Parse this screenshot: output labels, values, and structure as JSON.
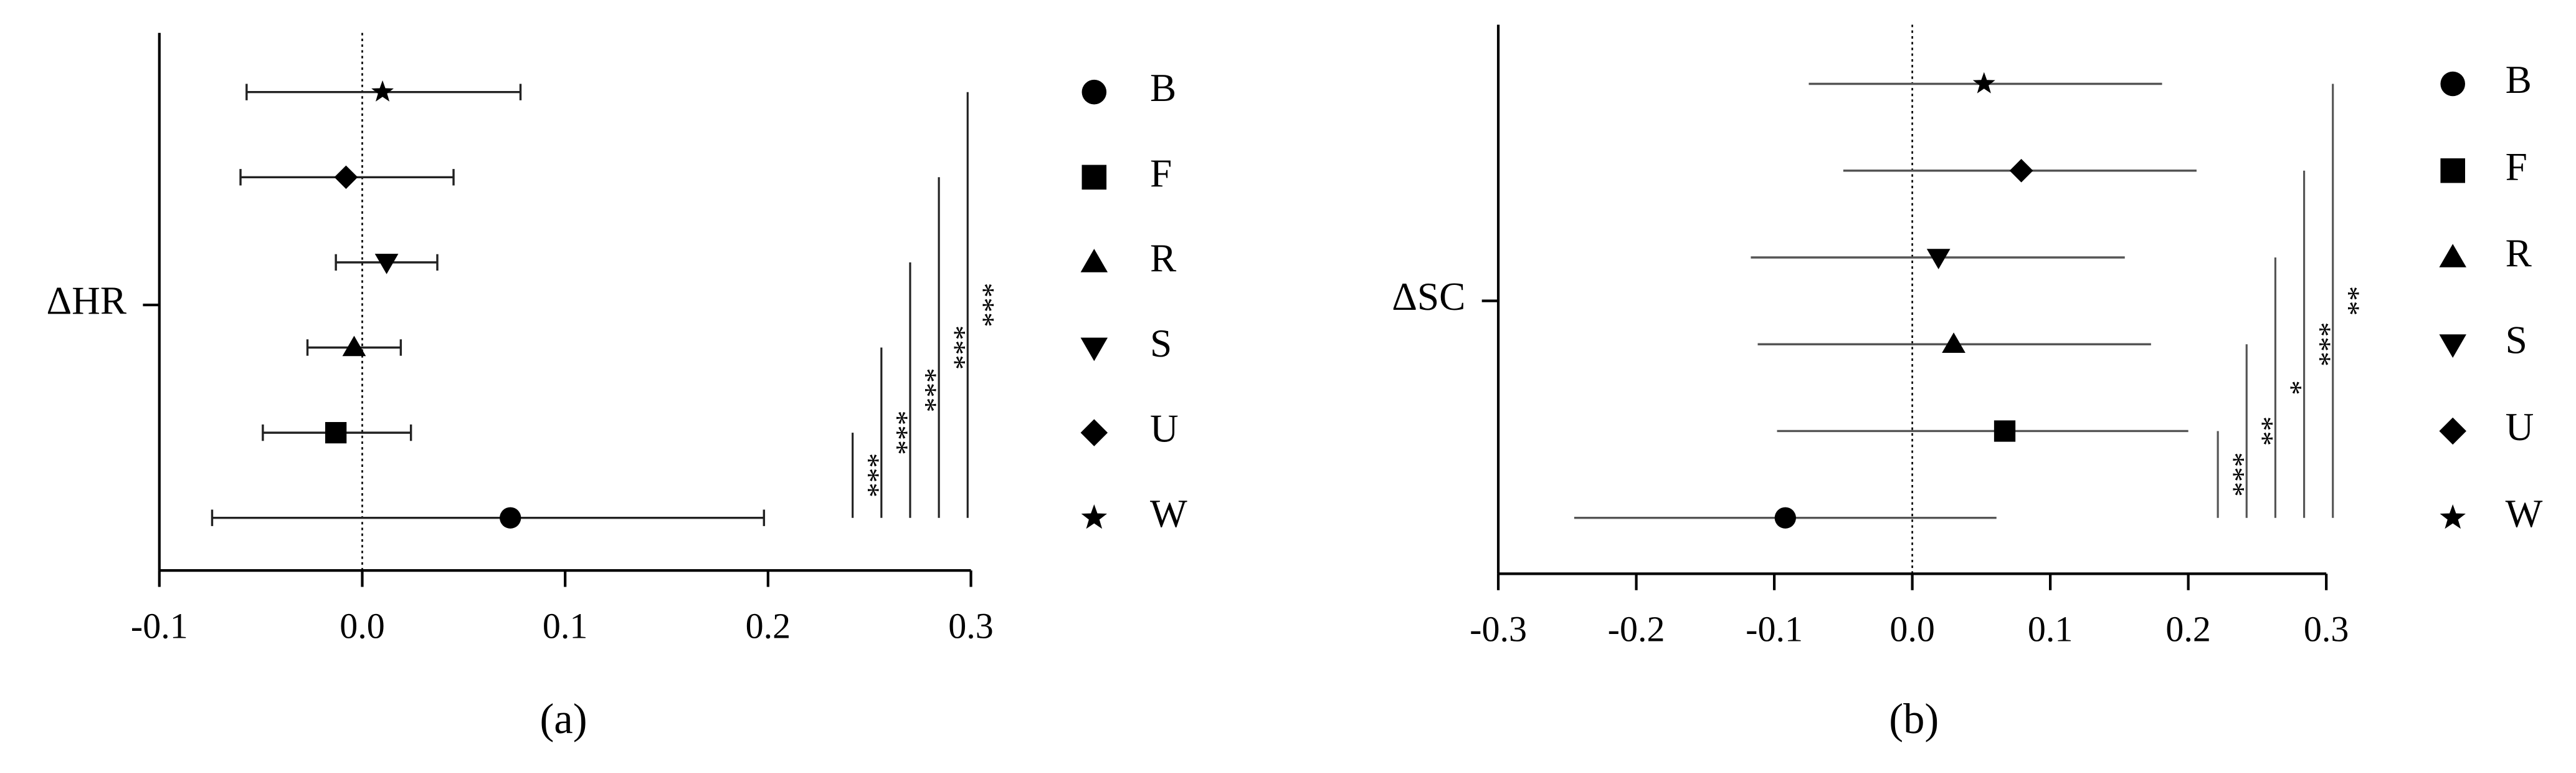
{
  "chart_data": [
    {
      "type": "errorbar",
      "ylabel": "ΔHR",
      "caption": "(a)",
      "categories": [
        "B",
        "F",
        "R",
        "S",
        "U",
        "W"
      ],
      "markers": [
        "circle",
        "square",
        "triangle-up",
        "triangle-down",
        "diamond",
        "star"
      ],
      "values": [
        0.073,
        -0.013,
        -0.004,
        0.012,
        -0.008,
        0.01
      ],
      "lower": [
        -0.074,
        -0.049,
        -0.027,
        -0.013,
        -0.06,
        -0.057
      ],
      "upper": [
        0.198,
        0.024,
        0.019,
        0.037,
        0.045,
        0.078
      ],
      "xlim": [
        -0.1,
        0.3
      ],
      "xticks": [
        -0.1,
        {
          "value": 0,
          "label": "0.0"
        },
        0.1,
        0.2,
        0.3
      ],
      "reference_line": 0,
      "color": "#222222",
      "caps": true,
      "significance": [
        {
          "pair": [
            "B",
            "F"
          ],
          "label": "***"
        },
        {
          "pair": [
            "B",
            "R"
          ],
          "label": "***"
        },
        {
          "pair": [
            "B",
            "S"
          ],
          "label": "***"
        },
        {
          "pair": [
            "B",
            "U"
          ],
          "label": "***"
        },
        {
          "pair": [
            "B",
            "W"
          ],
          "label": "***"
        }
      ]
    },
    {
      "type": "errorbar",
      "ylabel": "ΔSC",
      "caption": "(b)",
      "categories": [
        "B",
        "F",
        "R",
        "S",
        "U",
        "W"
      ],
      "markers": [
        "circle",
        "square",
        "triangle-up",
        "triangle-down",
        "diamond",
        "star"
      ],
      "values": [
        -0.092,
        0.067,
        0.03,
        0.019,
        0.079,
        0.052
      ],
      "lower": [
        -0.245,
        -0.098,
        -0.112,
        -0.117,
        -0.05,
        -0.075
      ],
      "upper": [
        0.061,
        0.2,
        0.173,
        0.154,
        0.206,
        0.181
      ],
      "xlim": [
        -0.3,
        0.3
      ],
      "xticks": [
        -0.3,
        -0.2,
        -0.1,
        {
          "value": 0,
          "label": "0.0"
        },
        0.1,
        0.2,
        0.3
      ],
      "reference_line": 0,
      "color": "#555555",
      "caps": false,
      "significance": [
        {
          "pair": [
            "B",
            "F"
          ],
          "label": "***"
        },
        {
          "pair": [
            "B",
            "R"
          ],
          "label": "**"
        },
        {
          "pair": [
            "B",
            "S"
          ],
          "label": "*"
        },
        {
          "pair": [
            "B",
            "U"
          ],
          "label": "***"
        },
        {
          "pair": [
            "B",
            "W"
          ],
          "label": "**"
        }
      ]
    }
  ]
}
